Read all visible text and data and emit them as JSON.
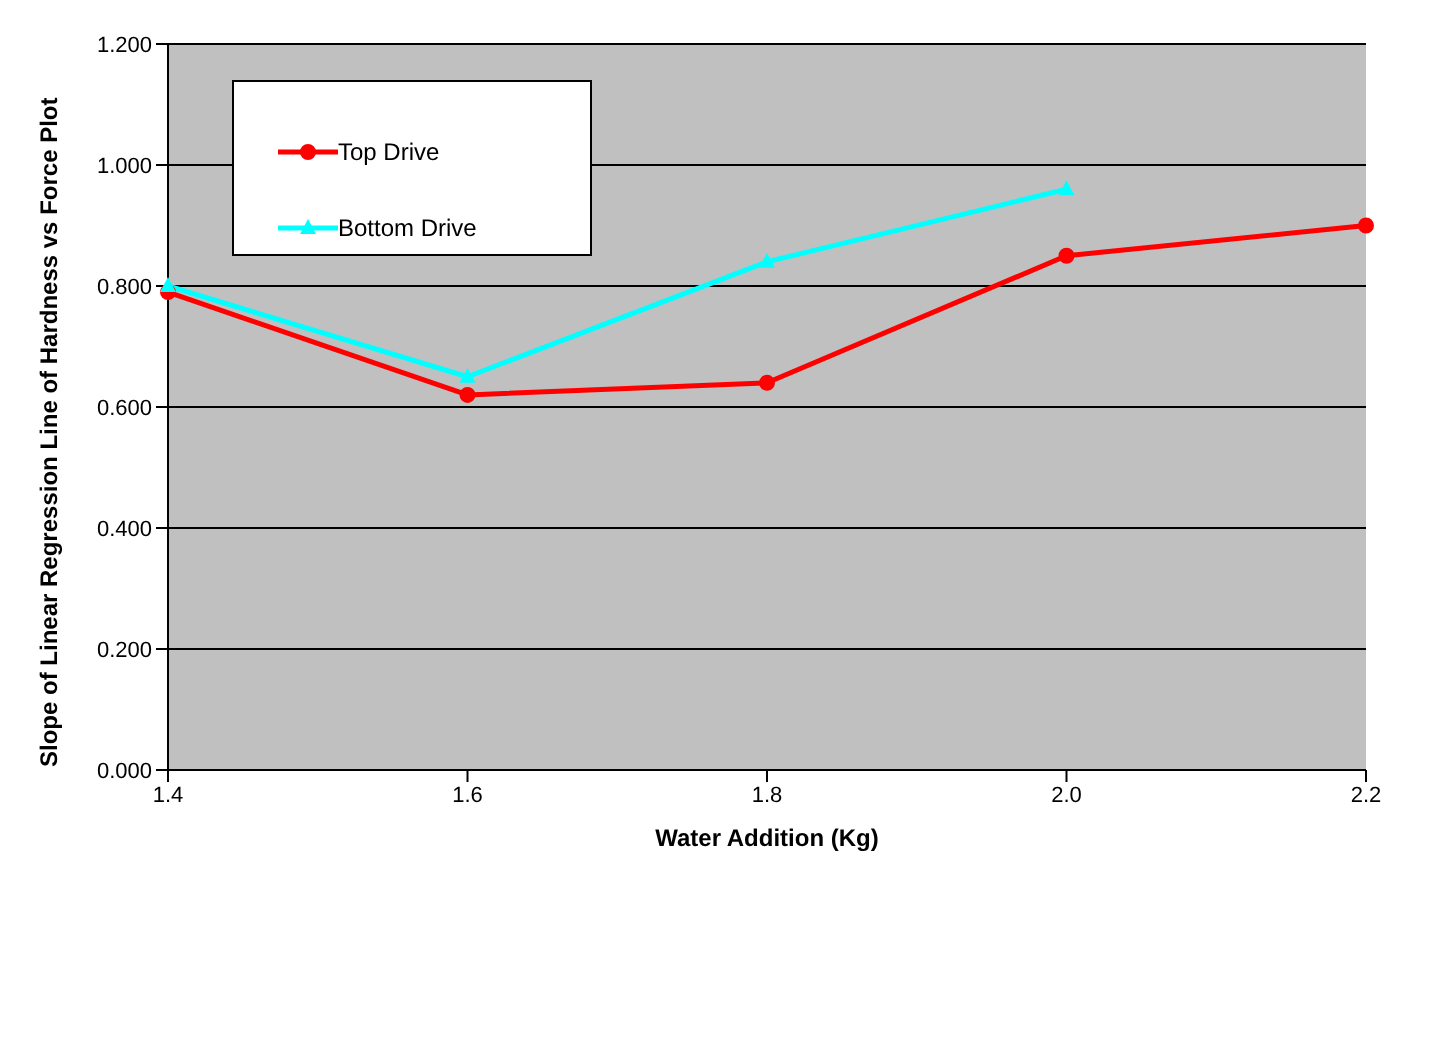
{
  "chart_data": {
    "type": "line",
    "xlabel": "Water Addition (Kg)",
    "ylabel": "Slope of Linear Regression Line of Hardness vs Force Plot",
    "categories": [
      "1.4",
      "1.6",
      "1.8",
      "2.0",
      "2.2"
    ],
    "series": [
      {
        "name": "Top Drive",
        "color": "#ff0000",
        "marker": "circle",
        "values": [
          0.79,
          0.62,
          0.64,
          0.85,
          0.9
        ]
      },
      {
        "name": "Bottom Drive",
        "color": "#00ffff",
        "marker": "triangle",
        "values": [
          0.8,
          0.65,
          0.84,
          0.96,
          null
        ]
      }
    ],
    "ylim": [
      0,
      1.2
    ],
    "yticks": [
      {
        "value": 0,
        "label": "0.000"
      },
      {
        "value": 0.2,
        "label": "0.200"
      },
      {
        "value": 0.4,
        "label": "0.400"
      },
      {
        "value": 0.6,
        "label": "0.600"
      },
      {
        "value": 0.8,
        "label": "0.800"
      },
      {
        "value": 1.0,
        "label": "1.000"
      },
      {
        "value": 1.2,
        "label": "1.200"
      }
    ],
    "grid": "y",
    "legend": "top left",
    "line_style": "solid"
  }
}
